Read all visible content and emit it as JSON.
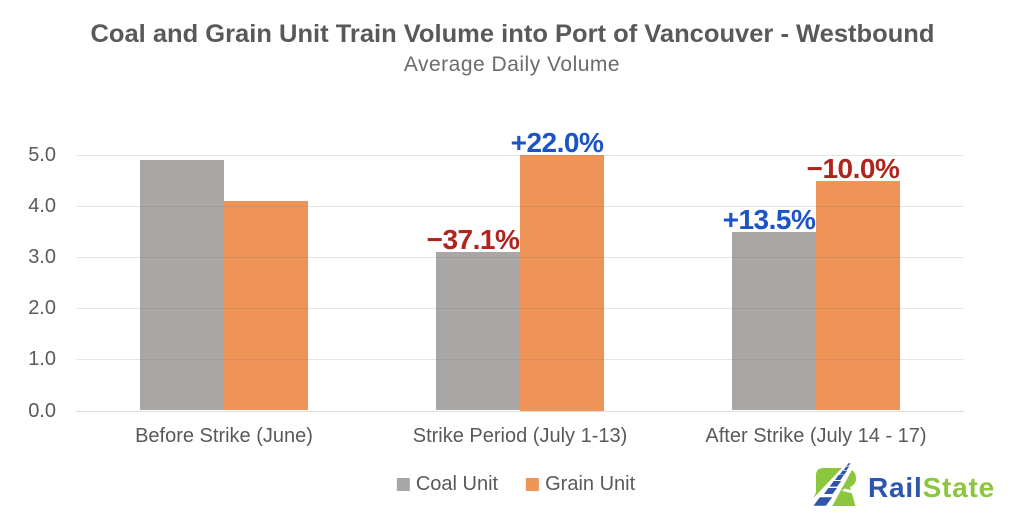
{
  "title": "Coal and Grain Unit Train Volume into Port of Vancouver - Westbound",
  "subtitle": "Average Daily Volume",
  "chart_data": {
    "type": "bar",
    "categories": [
      "Before Strike (June)",
      "Strike Period (July 1-13)",
      "After Strike (July 14 - 17)"
    ],
    "series": [
      {
        "name": "Coal Unit",
        "color": "#a8a7a5",
        "values": [
          4.9,
          3.1,
          3.5
        ]
      },
      {
        "name": "Grain Unit",
        "color": "#ee9458",
        "values": [
          4.1,
          5.0,
          4.5
        ]
      }
    ],
    "bar_labels": [
      {
        "series_index": 0,
        "category_index": 1,
        "text": "−37.1%",
        "color": "#b0241e"
      },
      {
        "series_index": 1,
        "category_index": 1,
        "text": "+22.0%",
        "color": "#1b54c4"
      },
      {
        "series_index": 0,
        "category_index": 2,
        "text": "+13.5%",
        "color": "#1b54c4"
      },
      {
        "series_index": 1,
        "category_index": 2,
        "text": "−10.0%",
        "color": "#b0241e"
      }
    ],
    "ytick_labels": [
      "0.0",
      "1.0",
      "2.0",
      "3.0",
      "4.0",
      "5.0"
    ],
    "ytick_values": [
      0,
      1,
      2,
      3,
      4,
      5
    ],
    "ylim": [
      0,
      5.0
    ],
    "grid": true,
    "legend_position": "bottom",
    "xlabel": "",
    "ylabel": ""
  },
  "legend": {
    "items": [
      {
        "label": "Coal Unit",
        "color": "#a8a7a5"
      },
      {
        "label": "Grain Unit",
        "color": "#ee9458"
      }
    ]
  },
  "logo": {
    "rail": "Rail",
    "state": "State",
    "rail_color": "#2d56ab",
    "state_color": "#8cc63f"
  }
}
